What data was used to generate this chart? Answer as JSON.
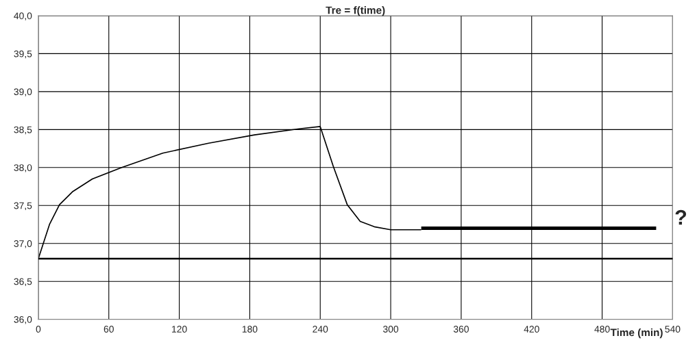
{
  "chart_data": {
    "type": "line",
    "title": "Tre = f(time)",
    "xlabel": "Time (min)",
    "xlim": [
      0,
      540
    ],
    "xticks": [
      0,
      60,
      120,
      180,
      240,
      300,
      360,
      420,
      480,
      540
    ],
    "ylim": [
      36.0,
      40.0
    ],
    "yticks": [
      {
        "value": 36.0,
        "label": "36,0"
      },
      {
        "value": 36.5,
        "label": "36,5"
      },
      {
        "value": 37.0,
        "label": "37,0"
      },
      {
        "value": 37.5,
        "label": "37,5"
      },
      {
        "value": 38.0,
        "label": "38,0"
      },
      {
        "value": 38.5,
        "label": "38,5"
      },
      {
        "value": 39.0,
        "label": "39,0"
      },
      {
        "value": 39.5,
        "label": "39,5"
      },
      {
        "value": 40.0,
        "label": "40,0"
      }
    ],
    "grid": true,
    "marker": "none",
    "line_style": "solid",
    "series": [
      {
        "color": "#000000",
        "x": [
          0,
          9.5,
          18,
          29,
          46,
          71,
          106,
          145,
          184,
          222,
          240,
          251,
          263,
          274,
          286,
          300,
          326
        ],
        "values": [
          36.8,
          37.25,
          37.51,
          37.68,
          37.85,
          38.0,
          38.19,
          38.32,
          38.43,
          38.51,
          38.54,
          38.02,
          37.51,
          37.29,
          37.22,
          37.18,
          37.18
        ]
      },
      {
        "color": "#000000",
        "x": [
          326,
          526
        ],
        "values": [
          37.2,
          37.2
        ]
      }
    ],
    "ref_lines": [
      {
        "axis": "y",
        "value": 36.8,
        "color": "#000000",
        "line_style": "solid"
      }
    ],
    "annotations": [
      "?"
    ]
  }
}
